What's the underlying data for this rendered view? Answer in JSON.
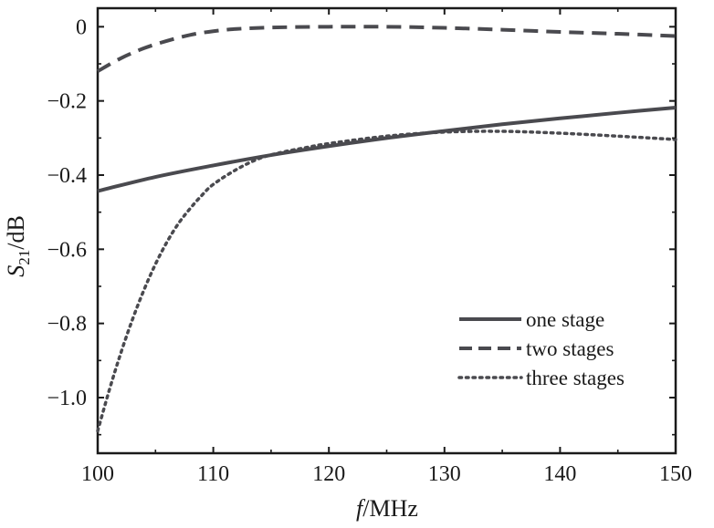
{
  "chart_data": {
    "type": "line",
    "xlabel": {
      "main": "f",
      "unit": "/MHz"
    },
    "ylabel": {
      "main": "S",
      "sub": "21",
      "unit": "/dB"
    },
    "xlim": [
      100,
      150
    ],
    "ylim": [
      -1.15,
      0.05
    ],
    "xticks": [
      100,
      110,
      120,
      130,
      140,
      150
    ],
    "yticks": [
      0,
      -0.2,
      -0.4,
      -0.6,
      -0.8,
      -1.0
    ],
    "ytick_labels": [
      "0",
      "−0.2",
      "−0.4",
      "−0.6",
      "−0.8",
      "−1.0"
    ],
    "grid": false,
    "legend_position": "lower-right",
    "series": [
      {
        "name": "one stage",
        "style": "solid",
        "color": "#4a4a4f",
        "x": [
          100,
          105,
          110,
          115,
          120,
          125,
          130,
          135,
          140,
          145,
          150
        ],
        "y": [
          -0.443,
          -0.405,
          -0.374,
          -0.346,
          -0.322,
          -0.3,
          -0.281,
          -0.263,
          -0.247,
          -0.232,
          -0.218
        ]
      },
      {
        "name": "two stages",
        "style": "dashed",
        "color": "#4a4a4f",
        "x": [
          100,
          102,
          104,
          106,
          108,
          110,
          112,
          115,
          120,
          125,
          130,
          135,
          140,
          145,
          150
        ],
        "y": [
          -0.12,
          -0.085,
          -0.058,
          -0.038,
          -0.022,
          -0.012,
          -0.006,
          -0.002,
          0.0,
          0.0,
          -0.003,
          -0.008,
          -0.014,
          -0.019,
          -0.025
        ]
      },
      {
        "name": "three stages",
        "style": "dotted",
        "color": "#4a4a4f",
        "x": [
          100,
          101,
          102,
          103,
          104,
          105,
          106,
          107,
          108,
          109,
          110,
          112,
          114,
          116,
          118,
          120,
          125,
          130,
          135,
          140,
          145,
          150
        ],
        "y": [
          -1.09,
          -0.98,
          -0.88,
          -0.79,
          -0.71,
          -0.64,
          -0.58,
          -0.53,
          -0.49,
          -0.455,
          -0.425,
          -0.385,
          -0.355,
          -0.338,
          -0.326,
          -0.315,
          -0.295,
          -0.284,
          -0.282,
          -0.287,
          -0.295,
          -0.304
        ]
      }
    ]
  }
}
